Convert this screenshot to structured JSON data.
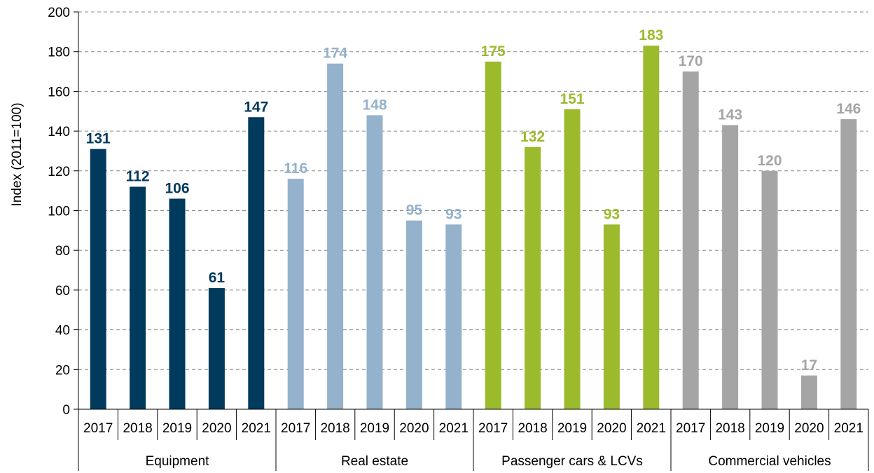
{
  "chart_data": {
    "type": "bar",
    "ylabel": "Index (2011=100)",
    "ylim": [
      0,
      200
    ],
    "yticks": [
      0,
      20,
      40,
      60,
      80,
      100,
      120,
      140,
      160,
      180,
      200
    ],
    "grid": true,
    "groups": [
      {
        "name": "Equipment",
        "color": "#003A5D",
        "years": [
          "2017",
          "2018",
          "2019",
          "2020",
          "2021"
        ],
        "values": [
          131,
          112,
          106,
          61,
          147
        ]
      },
      {
        "name": "Real estate",
        "color": "#94B2CB",
        "years": [
          "2017",
          "2018",
          "2019",
          "2020",
          "2021"
        ],
        "values": [
          116,
          174,
          148,
          95,
          93
        ]
      },
      {
        "name": "Passenger cars & LCVs",
        "color": "#9BBB2D",
        "years": [
          "2017",
          "2018",
          "2019",
          "2020",
          "2021"
        ],
        "values": [
          175,
          132,
          151,
          93,
          183
        ]
      },
      {
        "name": "Commercial vehicles",
        "color": "#A5A5A5",
        "years": [
          "2017",
          "2018",
          "2019",
          "2020",
          "2021"
        ],
        "values": [
          170,
          143,
          120,
          17,
          146
        ]
      }
    ]
  }
}
